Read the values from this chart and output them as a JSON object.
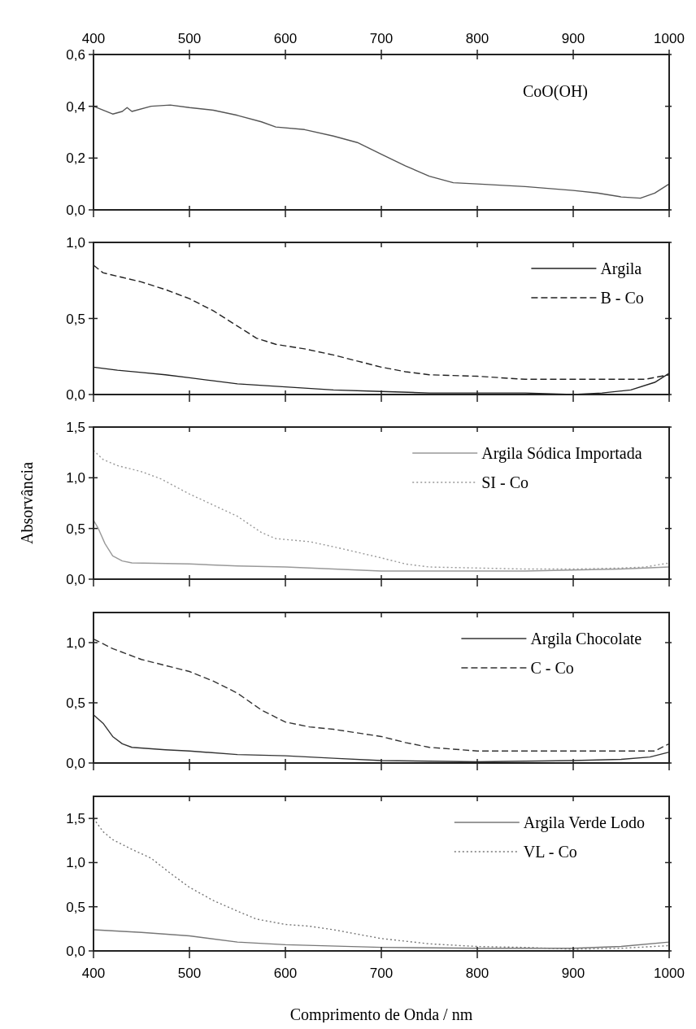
{
  "chart_data": [
    {
      "type": "line",
      "annotations": [
        "CoO(OH)"
      ],
      "xlim": [
        400,
        1000
      ],
      "xticks": [
        400,
        500,
        600,
        700,
        800,
        900,
        1000
      ],
      "ylim": [
        0,
        0.6
      ],
      "yticks": [
        {
          "value": 0,
          "label": "0,0"
        },
        {
          "value": 0.2,
          "label": "0,2"
        },
        {
          "value": 0.4,
          "label": "0,4"
        },
        {
          "value": 0.6,
          "label": "0,6"
        }
      ],
      "legend": false,
      "series": [
        {
          "color": "#555555",
          "line_style": "solid",
          "x": [
            400,
            410,
            420,
            430,
            435,
            440,
            460,
            480,
            500,
            525,
            550,
            575,
            590,
            620,
            650,
            675,
            700,
            725,
            750,
            775,
            800,
            850,
            900,
            925,
            950,
            970,
            985,
            1000
          ],
          "values": [
            0.4,
            0.385,
            0.37,
            0.38,
            0.395,
            0.38,
            0.4,
            0.405,
            0.395,
            0.385,
            0.365,
            0.34,
            0.32,
            0.31,
            0.285,
            0.26,
            0.215,
            0.17,
            0.13,
            0.105,
            0.1,
            0.09,
            0.075,
            0.065,
            0.05,
            0.045,
            0.065,
            0.1
          ]
        }
      ]
    },
    {
      "type": "line",
      "xlim": [
        400,
        1000
      ],
      "xticks": [
        400,
        500,
        600,
        700,
        800,
        900,
        1000
      ],
      "tick_labels": "y",
      "ylim": [
        0,
        1
      ],
      "yticks": [
        {
          "value": 0,
          "label": "0,0"
        },
        {
          "value": 0.5,
          "label": "0,5"
        },
        {
          "value": 1,
          "label": "1,0"
        }
      ],
      "legend": "top right",
      "series": [
        {
          "name": "Argila",
          "color": "#222222",
          "line_style": "solid",
          "x": [
            400,
            425,
            450,
            475,
            500,
            525,
            550,
            600,
            650,
            700,
            750,
            800,
            850,
            900,
            930,
            960,
            985,
            1000
          ],
          "values": [
            0.18,
            0.16,
            0.145,
            0.13,
            0.11,
            0.09,
            0.07,
            0.05,
            0.03,
            0.02,
            0.01,
            0.01,
            0.01,
            0.0,
            0.01,
            0.03,
            0.08,
            0.14
          ]
        },
        {
          "name": "B - Co",
          "color": "#222222",
          "line_style": "dashed",
          "x": [
            400,
            410,
            430,
            450,
            475,
            500,
            525,
            550,
            570,
            590,
            620,
            650,
            675,
            700,
            725,
            750,
            800,
            850,
            900,
            950,
            975,
            1000
          ],
          "values": [
            0.85,
            0.8,
            0.77,
            0.74,
            0.69,
            0.63,
            0.55,
            0.45,
            0.37,
            0.33,
            0.3,
            0.26,
            0.22,
            0.18,
            0.15,
            0.13,
            0.12,
            0.1,
            0.1,
            0.1,
            0.1,
            0.13
          ]
        }
      ]
    },
    {
      "type": "line",
      "ylabel": "Absorvância",
      "xlim": [
        400,
        1000
      ],
      "xticks": [
        400,
        500,
        600,
        700,
        800,
        900,
        1000
      ],
      "tick_labels": "y",
      "ylim": [
        0,
        1.5
      ],
      "yticks": [
        {
          "value": 0,
          "label": "0,0"
        },
        {
          "value": 0.5,
          "label": "0,5"
        },
        {
          "value": 1,
          "label": "1,0"
        },
        {
          "value": 1.5,
          "label": "1,5"
        }
      ],
      "legend": "top right",
      "series": [
        {
          "name": "Argila Sódica Importada",
          "color": "#999999",
          "line_style": "solid",
          "x": [
            400,
            405,
            412,
            420,
            430,
            440,
            500,
            550,
            600,
            650,
            700,
            750,
            800,
            850,
            900,
            950,
            1000
          ],
          "values": [
            0.58,
            0.5,
            0.35,
            0.23,
            0.18,
            0.16,
            0.15,
            0.13,
            0.12,
            0.1,
            0.08,
            0.08,
            0.08,
            0.08,
            0.09,
            0.1,
            0.12
          ]
        },
        {
          "name": "SI - Co",
          "color": "#999999",
          "line_style": "dotted",
          "x": [
            400,
            410,
            425,
            450,
            470,
            500,
            525,
            550,
            575,
            590,
            625,
            650,
            700,
            725,
            750,
            800,
            850,
            900,
            950,
            975,
            1000
          ],
          "values": [
            1.27,
            1.18,
            1.12,
            1.06,
            0.99,
            0.84,
            0.73,
            0.62,
            0.46,
            0.4,
            0.37,
            0.32,
            0.21,
            0.15,
            0.12,
            0.11,
            0.1,
            0.1,
            0.11,
            0.12,
            0.16
          ]
        }
      ]
    },
    {
      "type": "line",
      "xlim": [
        400,
        1000
      ],
      "xticks": [
        400,
        500,
        600,
        700,
        800,
        900,
        1000
      ],
      "tick_labels": "y",
      "ylim": [
        0,
        1.25
      ],
      "yticks": [
        {
          "value": 0,
          "label": "0,0"
        },
        {
          "value": 0.5,
          "label": "0,5"
        },
        {
          "value": 1,
          "label": "1,0"
        }
      ],
      "legend": "top right",
      "series": [
        {
          "name": "Argila Chocolate",
          "color": "#333333",
          "line_style": "solid",
          "x": [
            400,
            410,
            420,
            430,
            440,
            475,
            500,
            550,
            600,
            650,
            700,
            800,
            900,
            950,
            980,
            1000
          ],
          "values": [
            0.4,
            0.33,
            0.22,
            0.16,
            0.13,
            0.11,
            0.1,
            0.07,
            0.06,
            0.04,
            0.02,
            0.01,
            0.02,
            0.03,
            0.05,
            0.09
          ]
        },
        {
          "name": "C - Co",
          "color": "#333333",
          "line_style": "dashed",
          "x": [
            400,
            420,
            450,
            500,
            525,
            550,
            575,
            600,
            625,
            650,
            700,
            725,
            750,
            800,
            900,
            975,
            985,
            1000
          ],
          "values": [
            1.03,
            0.95,
            0.86,
            0.76,
            0.68,
            0.58,
            0.44,
            0.34,
            0.3,
            0.28,
            0.22,
            0.17,
            0.13,
            0.1,
            0.1,
            0.1,
            0.1,
            0.16
          ]
        }
      ]
    },
    {
      "type": "line",
      "xlabel": "Comprimento de Onda / nm",
      "xlim": [
        400,
        1000
      ],
      "xticks": [
        400,
        500,
        600,
        700,
        800,
        900,
        1000
      ],
      "ylim": [
        0,
        1.75
      ],
      "yticks": [
        {
          "value": 0,
          "label": "0,0"
        },
        {
          "value": 0.5,
          "label": "0,5"
        },
        {
          "value": 1,
          "label": "1,0"
        },
        {
          "value": 1.5,
          "label": "1,5"
        }
      ],
      "legend": "top right",
      "series": [
        {
          "name": "Argila Verde Lodo",
          "color": "#777777",
          "line_style": "solid",
          "x": [
            400,
            450,
            500,
            550,
            600,
            700,
            800,
            900,
            950,
            1000
          ],
          "values": [
            0.24,
            0.21,
            0.17,
            0.1,
            0.07,
            0.04,
            0.03,
            0.03,
            0.05,
            0.1
          ]
        },
        {
          "name": "VL - Co",
          "color": "#777777",
          "line_style": "dotted",
          "x": [
            400,
            410,
            420,
            440,
            460,
            480,
            500,
            525,
            550,
            570,
            600,
            625,
            650,
            700,
            750,
            800,
            850,
            900,
            950,
            1000
          ],
          "values": [
            1.5,
            1.35,
            1.26,
            1.15,
            1.05,
            0.88,
            0.72,
            0.57,
            0.45,
            0.36,
            0.3,
            0.28,
            0.24,
            0.14,
            0.08,
            0.05,
            0.04,
            0.02,
            0.03,
            0.06
          ]
        }
      ]
    }
  ]
}
